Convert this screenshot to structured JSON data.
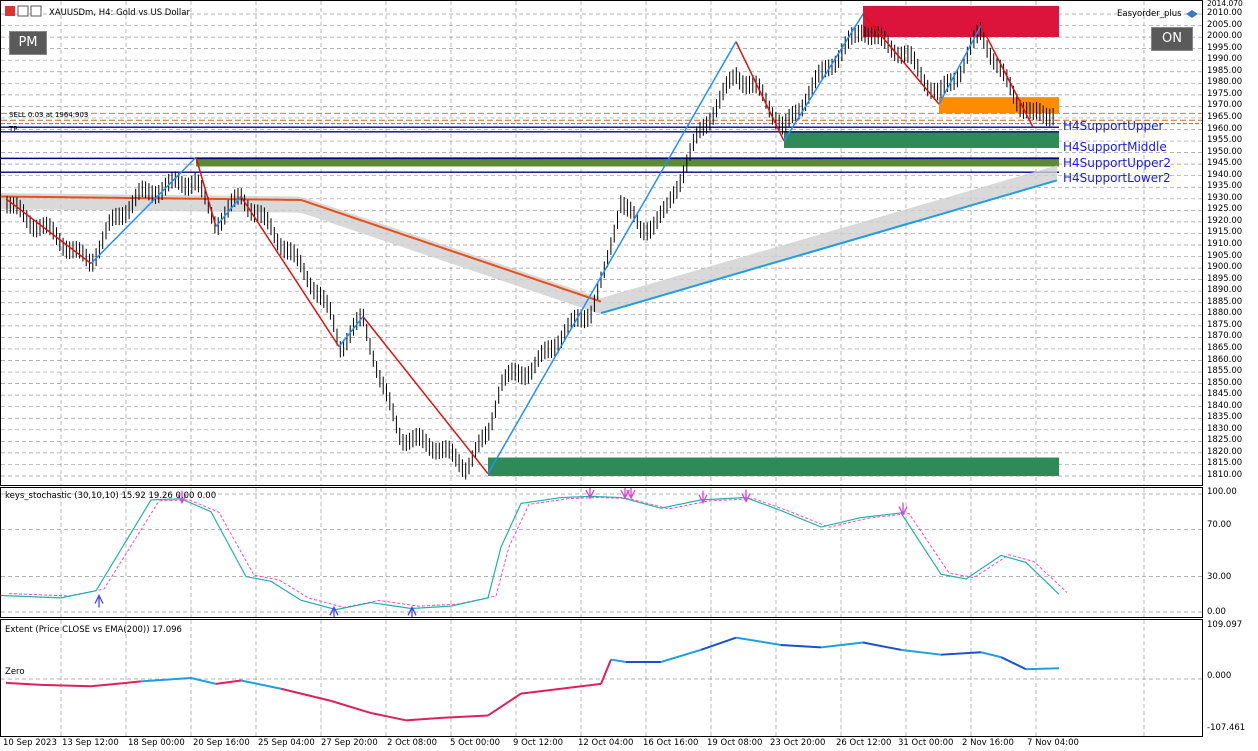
{
  "window": {
    "symbol_title": "XAUUSDm, H4:  Gold vs US Dollar",
    "ea_name": "Easyorder_plus",
    "pm_button": "PM",
    "on_button": "ON",
    "order_line": "SELL 0.03 at 1964.903",
    "tp_label": "TP"
  },
  "support_labels": [
    "H4SupportUpper",
    "H4SupportMiddle",
    "H4SupportUpper2",
    "H4SupportLower2"
  ],
  "price_axis": {
    "top_value": "2014.070",
    "ticks": [
      "2010.00",
      "2005.00",
      "2000.00",
      "1995.00",
      "1990.00",
      "1985.00",
      "1980.00",
      "1975.00",
      "1970.00",
      "1965.00",
      "1960.00",
      "1955.00",
      "1950.00",
      "1945.00",
      "1940.00",
      "1935.00",
      "1930.00",
      "1925.00",
      "1920.00",
      "1915.00",
      "1910.00",
      "1905.00",
      "1900.00",
      "1895.00",
      "1890.00",
      "1885.00",
      "1880.00",
      "1875.00",
      "1870.00",
      "1865.00",
      "1860.00",
      "1855.00",
      "1850.00",
      "1845.00",
      "1840.00",
      "1835.00",
      "1830.00",
      "1825.00",
      "1820.00",
      "1815.00",
      "1810.00"
    ]
  },
  "stochastic": {
    "title": "keys_stochastic (30,10,10) 15.92 19.26 0.00 0.00",
    "ticks": [
      "100.00",
      "70.00",
      "30.00",
      "0.00"
    ]
  },
  "extent": {
    "title": "Extent (Price CLOSE vs EMA(200)) 17.096",
    "zero_label": "Zero",
    "ticks": [
      "109.097",
      "0.000",
      "-107.461"
    ]
  },
  "time_axis": [
    "10 Sep 2023",
    "13 Sep 12:00",
    "18 Sep 00:00",
    "20 Sep 16:00",
    "25 Sep 04:00",
    "27 Sep 20:00",
    "2 Oct 08:00",
    "5 Oct 00:00",
    "9 Oct 12:00",
    "12 Oct 04:00",
    "16 Oct 16:00",
    "19 Oct 08:00",
    "23 Oct 20:00",
    "26 Oct 12:00",
    "31 Oct 00:00",
    "2 Nov 16:00",
    "7 Nov 04:00"
  ],
  "colors": {
    "bull_zone": "#2e8b57",
    "bear_zone": "#dc143c",
    "orange_zone": "#ff8c00",
    "up_leg": "#1e90ff",
    "down_leg": "#e01010",
    "support_line": "#00008b",
    "ema_fast": "#e8501a",
    "ema_slow": "#1ea0e0",
    "stoch_main": "#20b2aa",
    "stoch_signal": "#ff44cc"
  }
}
